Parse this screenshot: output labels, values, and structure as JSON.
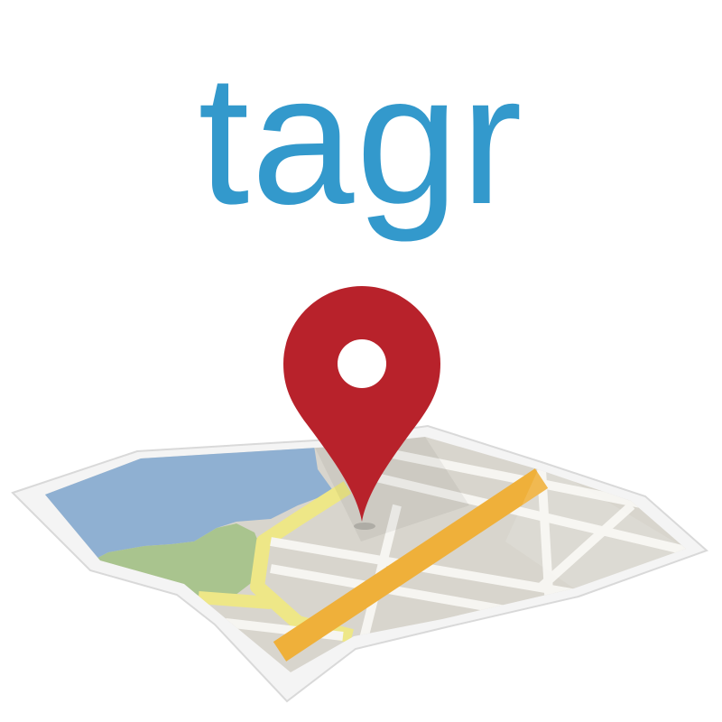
{
  "app": {
    "wordmark": "tagr",
    "wordmark_color": "#3399cc"
  },
  "icons": {
    "pin": "map-pin-icon",
    "map": "folded-map-icon"
  },
  "colors": {
    "pin_red": "#b8222b",
    "water_blue": "#8fb0d2",
    "park_green": "#a9c48e",
    "main_road_orange": "#efb03a",
    "secondary_road_yellow": "#eee787",
    "paper_gray": "#d8d5cd",
    "map_border": "#f3f3f3"
  }
}
